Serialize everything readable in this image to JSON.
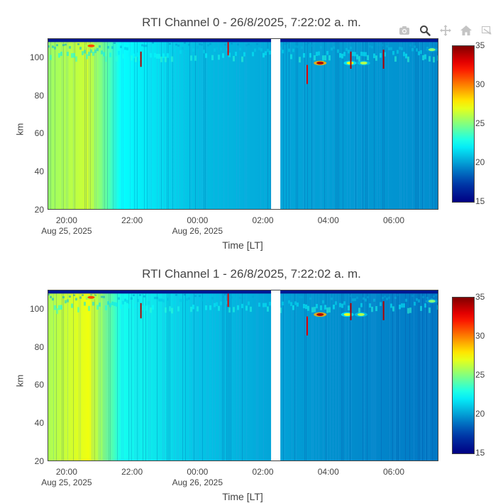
{
  "modebar": {
    "items": [
      {
        "name": "camera-icon",
        "title": "Download plot as a png"
      },
      {
        "name": "zoom-icon",
        "title": "Zoom"
      },
      {
        "name": "pan-icon",
        "title": "Pan"
      },
      {
        "name": "home-icon",
        "title": "Reset axes"
      },
      {
        "name": "autoscale-icon",
        "title": "Autoscale"
      }
    ],
    "colors": {
      "inactive": "#c4c4c4",
      "active": "#444444"
    }
  },
  "chart_data": [
    {
      "type": "heatmap",
      "title": "RTI Channel 0 - 26/8/2025, 7:22:02 a. m.",
      "xlabel": "Time [LT]",
      "ylabel": "km",
      "x_range": [
        "2025-08-25 19:25",
        "2025-08-26 07:22"
      ],
      "y_range": [
        20,
        110
      ],
      "yticks": [
        20,
        40,
        60,
        80,
        100
      ],
      "xticks": [
        {
          "time": "2025-08-25 20:00",
          "label": "20:00",
          "sublabel": "Aug 25, 2025"
        },
        {
          "time": "2025-08-25 22:00",
          "label": "22:00",
          "sublabel": ""
        },
        {
          "time": "2025-08-26 00:00",
          "label": "00:00",
          "sublabel": "Aug 26, 2025"
        },
        {
          "time": "2025-08-26 02:00",
          "label": "02:00",
          "sublabel": ""
        },
        {
          "time": "2025-08-26 04:00",
          "label": "04:00",
          "sublabel": ""
        },
        {
          "time": "2025-08-26 06:00",
          "label": "06:00",
          "sublabel": ""
        }
      ],
      "colorscale": "jet",
      "zmin": 15,
      "zmax": 35,
      "colorbar_ticks": [
        15,
        20,
        25,
        30,
        35
      ],
      "background_level_by_time": [
        {
          "time": "2025-08-25 19:25",
          "value": 25.5
        },
        {
          "time": "2025-08-25 20:40",
          "value": 26.5
        },
        {
          "time": "2025-08-25 21:40",
          "value": 22.5
        },
        {
          "time": "2025-08-26 00:00",
          "value": 20.8
        },
        {
          "time": "2025-08-26 02:15",
          "value": 20.3
        },
        {
          "time": "2025-08-26 04:00",
          "value": 20.0
        },
        {
          "time": "2025-08-26 07:22",
          "value": 19.6
        }
      ],
      "data_gap": {
        "start": "2025-08-26 02:15",
        "end": "2025-08-26 02:32"
      },
      "echo_layer": {
        "km_min": 95,
        "km_max": 108,
        "value": 21.5
      },
      "strong_echoes": [
        {
          "time": "2025-08-25 20:45",
          "km": 106,
          "value": 31
        },
        {
          "time": "2025-08-26 03:45",
          "km": 97,
          "value": 34
        },
        {
          "time": "2025-08-26 04:40",
          "km": 97,
          "value": 27
        },
        {
          "time": "2025-08-26 05:05",
          "km": 97,
          "value": 26
        },
        {
          "time": "2025-08-26 07:10",
          "km": 104,
          "value": 25
        }
      ],
      "vertical_streaks": [
        {
          "time": "2025-08-25 22:15",
          "km_top": 103,
          "km_bottom": 95,
          "value": 34
        },
        {
          "time": "2025-08-26 00:55",
          "km_top": 108,
          "km_bottom": 101,
          "value": 33
        },
        {
          "time": "2025-08-26 03:20",
          "km_top": 96,
          "km_bottom": 86,
          "value": 33
        },
        {
          "time": "2025-08-26 04:40",
          "km_top": 103,
          "km_bottom": 94,
          "value": 34
        },
        {
          "time": "2025-08-26 05:40",
          "km_top": 104,
          "km_bottom": 94,
          "value": 34
        }
      ]
    },
    {
      "type": "heatmap",
      "title": "RTI Channel 1 - 26/8/2025, 7:22:02 a. m.",
      "xlabel": "Time [LT]",
      "ylabel": "km",
      "x_range": [
        "2025-08-25 19:25",
        "2025-08-26 07:22"
      ],
      "y_range": [
        20,
        110
      ],
      "yticks": [
        20,
        40,
        60,
        80,
        100
      ],
      "xticks": [
        {
          "time": "2025-08-25 20:00",
          "label": "20:00",
          "sublabel": "Aug 25, 2025"
        },
        {
          "time": "2025-08-25 22:00",
          "label": "22:00",
          "sublabel": ""
        },
        {
          "time": "2025-08-26 00:00",
          "label": "00:00",
          "sublabel": "Aug 26, 2025"
        },
        {
          "time": "2025-08-26 02:00",
          "label": "02:00",
          "sublabel": ""
        },
        {
          "time": "2025-08-26 04:00",
          "label": "04:00",
          "sublabel": ""
        },
        {
          "time": "2025-08-26 06:00",
          "label": "06:00",
          "sublabel": ""
        }
      ],
      "colorscale": "jet",
      "zmin": 15,
      "zmax": 35,
      "colorbar_ticks": [
        15,
        20,
        25,
        30,
        35
      ],
      "background_level_by_time": [
        {
          "time": "2025-08-25 19:25",
          "value": 25.8
        },
        {
          "time": "2025-08-25 20:40",
          "value": 27.2
        },
        {
          "time": "2025-08-25 21:40",
          "value": 22.8
        },
        {
          "time": "2025-08-26 00:00",
          "value": 21.0
        },
        {
          "time": "2025-08-26 02:15",
          "value": 20.2
        },
        {
          "time": "2025-08-26 04:00",
          "value": 19.7
        },
        {
          "time": "2025-08-26 07:22",
          "value": 19.0
        }
      ],
      "data_gap": {
        "start": "2025-08-26 02:15",
        "end": "2025-08-26 02:32"
      },
      "echo_layer": {
        "km_min": 95,
        "km_max": 108,
        "value": 21.5
      },
      "strong_echoes": [
        {
          "time": "2025-08-25 20:45",
          "km": 106,
          "value": 31
        },
        {
          "time": "2025-08-26 03:45",
          "km": 97,
          "value": 34
        },
        {
          "time": "2025-08-26 04:35",
          "km": 97,
          "value": 27
        },
        {
          "time": "2025-08-26 05:00",
          "km": 97,
          "value": 26
        },
        {
          "time": "2025-08-26 07:10",
          "km": 104,
          "value": 25
        }
      ],
      "vertical_streaks": [
        {
          "time": "2025-08-25 22:15",
          "km_top": 103,
          "km_bottom": 95,
          "value": 34
        },
        {
          "time": "2025-08-26 00:55",
          "km_top": 108,
          "km_bottom": 101,
          "value": 33
        },
        {
          "time": "2025-08-26 03:20",
          "km_top": 96,
          "km_bottom": 86,
          "value": 33
        },
        {
          "time": "2025-08-26 04:40",
          "km_top": 103,
          "km_bottom": 94,
          "value": 34
        },
        {
          "time": "2025-08-26 05:40",
          "km_top": 104,
          "km_bottom": 94,
          "value": 34
        }
      ]
    }
  ]
}
